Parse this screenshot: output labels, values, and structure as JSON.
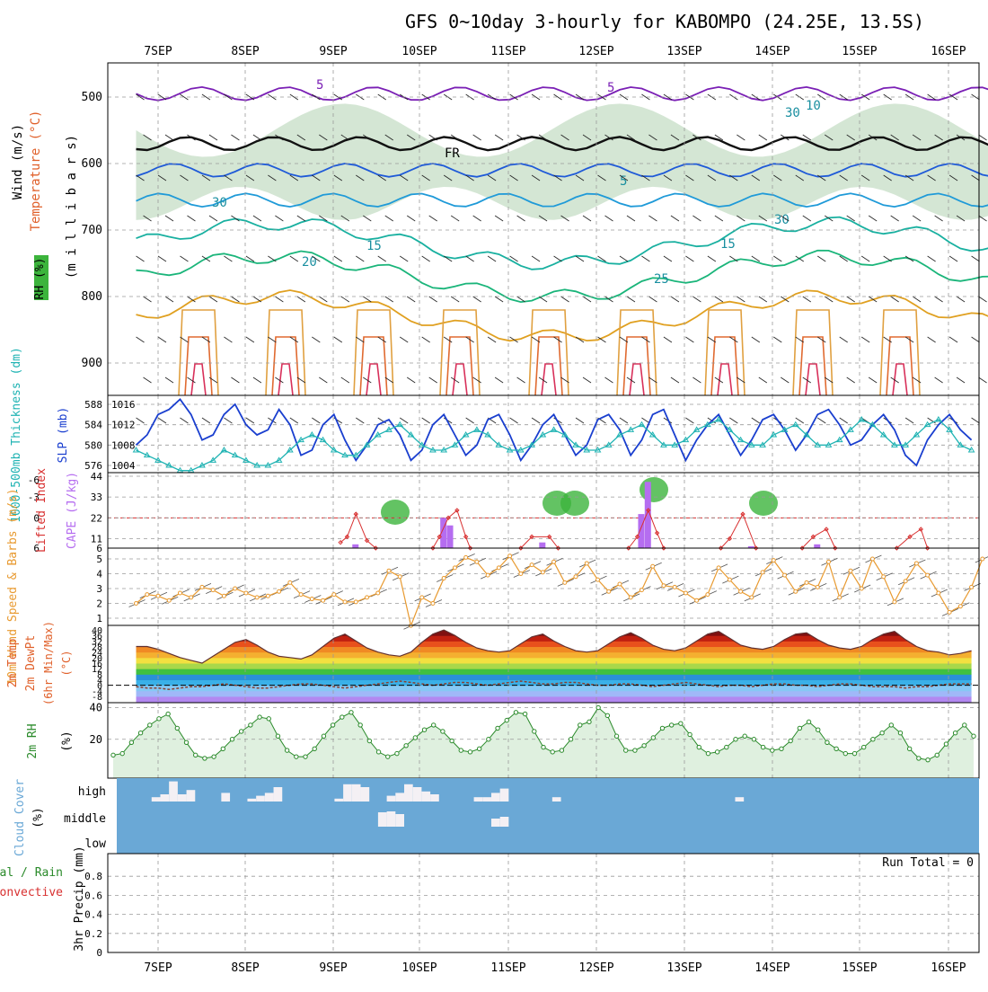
{
  "title": "GFS 0~10day 3-hourly for KABOMPO (24.25E, 13.5S)",
  "dates": [
    "7SEP",
    "8SEP",
    "9SEP",
    "10SEP",
    "11SEP",
    "12SEP",
    "13SEP",
    "14SEP",
    "15SEP",
    "16SEP"
  ],
  "run_total_text": "Run Total = 0",
  "colors": {
    "frame": "#000000",
    "grid": "#9a9a9a",
    "rh_fill": "#cfe3cf",
    "rh_dark": "#3cb43c",
    "wind_label": "#000000",
    "temp_label": "#e0602a",
    "slp_line": "#1a3fcf",
    "thickness_line": "#1fb3b3",
    "cape_bar": "#b56df0",
    "lifted_index": "#d83030",
    "wind_speed": "#e89a30",
    "rh_line": "#2a8a2a",
    "cloud_sky": "#6aa8d6",
    "cloud_white": "#f4f0f4"
  },
  "chart_data": [
    {
      "id": "upper_air",
      "type": "heatmap",
      "ylabel_parts": [
        "Wind",
        "(m/s)",
        "Temperature",
        "(°C)",
        "RH",
        "(%)",
        "(m i l l i b a r s)"
      ],
      "y_ticks": [
        500,
        600,
        700,
        800,
        900
      ],
      "ylim": [
        450,
        950
      ],
      "contour_labels": [
        "5",
        "5",
        "FR",
        "5",
        "15",
        "15",
        "20",
        "25",
        "30",
        "30",
        "30",
        "10"
      ]
    },
    {
      "id": "slp_thickness",
      "type": "line",
      "ylabel_left": "1000-500mb Thickness (dm)",
      "ylabel_right": "SLP (mb)",
      "left_ticks": [
        576,
        580,
        584,
        588
      ],
      "right_ticks": [
        1004,
        1008,
        1012,
        1016
      ],
      "series": [
        {
          "name": "SLP",
          "values": [
            1008,
            1010,
            1014,
            1015,
            1017,
            1014,
            1009,
            1010,
            1014,
            1016,
            1012,
            1010,
            1011,
            1015,
            1012,
            1006,
            1007,
            1012,
            1014,
            1009,
            1005,
            1008,
            1012,
            1013,
            1010,
            1005,
            1007,
            1012,
            1014,
            1010,
            1006,
            1008,
            1013,
            1014,
            1010,
            1005,
            1008,
            1012,
            1014,
            1010,
            1006,
            1008,
            1013,
            1014,
            1011,
            1006,
            1009,
            1014,
            1015,
            1010,
            1005,
            1009,
            1012,
            1014,
            1010,
            1006,
            1009,
            1013,
            1014,
            1011,
            1007,
            1010,
            1014,
            1015,
            1012,
            1008,
            1009,
            1012,
            1014,
            1011,
            1006,
            1004,
            1009,
            1012,
            1014,
            1011,
            1009
          ]
        },
        {
          "name": "Thickness",
          "values": [
            579,
            578,
            577,
            576,
            575,
            575,
            576,
            577,
            579,
            578,
            577,
            576,
            576,
            577,
            579,
            581,
            582,
            581,
            579,
            578,
            578,
            580,
            582,
            583,
            584,
            582,
            580,
            579,
            579,
            580,
            582,
            583,
            582,
            580,
            579,
            579,
            580,
            582,
            583,
            582,
            580,
            579,
            579,
            580,
            582,
            583,
            584,
            582,
            580,
            580,
            581,
            583,
            584,
            585,
            583,
            581,
            580,
            580,
            582,
            583,
            584,
            582,
            580,
            580,
            581,
            583,
            585,
            584,
            582,
            580,
            580,
            582,
            584,
            585,
            583,
            580,
            579
          ]
        }
      ]
    },
    {
      "id": "cape_li",
      "type": "bar",
      "ylabel_left": "Lifted Index",
      "ylabel_right": "CAPE (J/kg)",
      "left_ticks": [
        "6",
        "0",
        "-6"
      ],
      "right_ticks": [
        6,
        11,
        22,
        33,
        44
      ],
      "cape_ticks_left": [
        "6",
        "0",
        "-3",
        "-6"
      ],
      "bars": [
        {
          "x": 10.0,
          "v": 8
        },
        {
          "x": 14.0,
          "v": 22
        },
        {
          "x": 14.3,
          "v": 18
        },
        {
          "x": 18.5,
          "v": 9
        },
        {
          "x": 23.0,
          "v": 24
        },
        {
          "x": 23.3,
          "v": 41
        },
        {
          "x": 28.0,
          "v": 7
        },
        {
          "x": 31.0,
          "v": 8
        }
      ],
      "li_segments": [
        [
          [
            9.3,
            9
          ],
          [
            9.6,
            12
          ],
          [
            10.0,
            24
          ],
          [
            10.5,
            10
          ],
          [
            10.9,
            6
          ]
        ],
        [
          [
            13.5,
            6
          ],
          [
            13.8,
            12
          ],
          [
            14.2,
            22
          ],
          [
            14.6,
            26
          ],
          [
            15.0,
            12
          ],
          [
            15.2,
            6
          ]
        ],
        [
          [
            17.5,
            6
          ],
          [
            18.0,
            12
          ],
          [
            18.8,
            12
          ],
          [
            19.2,
            6
          ]
        ],
        [
          [
            22.4,
            6
          ],
          [
            22.8,
            12
          ],
          [
            23.3,
            26
          ],
          [
            23.7,
            14
          ],
          [
            24.0,
            6
          ]
        ],
        [
          [
            26.6,
            6
          ],
          [
            27.0,
            11
          ],
          [
            27.6,
            24
          ],
          [
            28.2,
            6
          ]
        ],
        [
          [
            30.3,
            6
          ],
          [
            30.8,
            12
          ],
          [
            31.4,
            16
          ],
          [
            31.8,
            6
          ]
        ],
        [
          [
            34.6,
            6
          ],
          [
            35.2,
            12
          ],
          [
            35.7,
            16
          ],
          [
            36.0,
            6
          ]
        ]
      ]
    },
    {
      "id": "wind10m",
      "type": "line",
      "ylabel": "10m Wind Speed & Barbs (m/s)",
      "y_ticks": [
        1,
        2,
        3,
        4,
        5
      ],
      "series": [
        {
          "name": "Speed",
          "values": [
            2.0,
            2.6,
            2.5,
            2.2,
            2.7,
            2.4,
            3.1,
            2.9,
            2.5,
            3.0,
            2.7,
            2.4,
            2.5,
            2.8,
            3.4,
            2.6,
            2.3,
            2.2,
            2.6,
            2.1,
            2.1,
            2.4,
            2.7,
            4.2,
            3.8,
            0.5,
            2.4,
            2.0,
            3.7,
            4.4,
            5.1,
            4.8,
            3.9,
            4.4,
            5.2,
            4.0,
            4.6,
            4.1,
            4.8,
            3.4,
            3.8,
            4.7,
            3.6,
            2.8,
            3.3,
            2.4,
            2.9,
            4.5,
            3.2,
            3.1,
            2.7,
            2.2,
            2.6,
            4.4,
            3.6,
            2.8,
            2.4,
            4.1,
            4.9,
            3.9,
            2.8,
            3.4,
            3.1,
            4.8,
            2.4,
            4.2,
            3.0,
            5.0,
            3.8,
            2.1,
            3.5,
            4.7,
            3.9,
            2.7,
            1.4,
            1.8,
            3.1,
            5.0
          ]
        }
      ]
    },
    {
      "id": "temp2m",
      "type": "area",
      "ylabel": "2m Temp 2m DewPt (6hr Min/Max) (°C)",
      "y_ticks": [
        -8,
        -4,
        0,
        4,
        8,
        12,
        16,
        20,
        24,
        28,
        32,
        36,
        40
      ],
      "series": [
        {
          "name": "Temp",
          "values": [
            28,
            28,
            26,
            23,
            20,
            18,
            16,
            21,
            26,
            31,
            33,
            29,
            24,
            21,
            20,
            19,
            22,
            28,
            34,
            37,
            32,
            27,
            24,
            22,
            21,
            24,
            31,
            37,
            40,
            36,
            31,
            27,
            25,
            24,
            25,
            30,
            35,
            37,
            32,
            28,
            25,
            24,
            25,
            30,
            35,
            38,
            34,
            29,
            26,
            25,
            27,
            32,
            37,
            39,
            34,
            29,
            27,
            26,
            28,
            33,
            37,
            38,
            33,
            29,
            27,
            26,
            28,
            33,
            37,
            39,
            33,
            28,
            25,
            24,
            22,
            23,
            25
          ]
        },
        {
          "name": "DewPt",
          "values": [
            -1,
            -2,
            -2,
            -3,
            -2,
            -1,
            -1,
            0,
            1,
            0,
            -1,
            -2,
            -2,
            -1,
            0,
            1,
            1,
            0,
            -1,
            -2,
            -1,
            0,
            1,
            2,
            3,
            2,
            1,
            0,
            1,
            2,
            2,
            1,
            0,
            1,
            2,
            3,
            2,
            1,
            1,
            2,
            2,
            1,
            0,
            0,
            1,
            1,
            0,
            -1,
            0,
            1,
            2,
            1,
            0,
            -1,
            0,
            0,
            -1,
            0,
            1,
            1,
            0,
            0,
            -1,
            0,
            1,
            1,
            0,
            -1,
            -1,
            -1,
            -2,
            -1,
            -1,
            0,
            1,
            1,
            1
          ]
        }
      ]
    },
    {
      "id": "rh2m",
      "type": "area",
      "ylabel": "2m RH (%)",
      "y_ticks": [
        20,
        40
      ],
      "series": [
        {
          "name": "RH",
          "values": [
            10,
            11,
            18,
            24,
            29,
            33,
            36,
            27,
            18,
            10,
            8,
            9,
            14,
            20,
            25,
            29,
            34,
            33,
            22,
            13,
            9,
            9,
            14,
            22,
            29,
            34,
            37,
            29,
            19,
            12,
            9,
            11,
            16,
            21,
            26,
            29,
            25,
            19,
            13,
            12,
            14,
            20,
            27,
            32,
            37,
            36,
            25,
            15,
            12,
            13,
            20,
            29,
            31,
            40,
            35,
            22,
            13,
            13,
            16,
            21,
            27,
            29,
            30,
            23,
            15,
            11,
            12,
            15,
            20,
            22,
            20,
            15,
            13,
            14,
            19,
            27,
            31,
            26,
            18,
            14,
            11,
            11,
            15,
            20,
            24,
            29,
            24,
            14,
            8,
            7,
            10,
            17,
            24,
            29,
            22
          ]
        }
      ]
    },
    {
      "id": "cloud",
      "type": "bar",
      "ylabel": "Cloud Cover (%)",
      "levels": [
        "high",
        "middle",
        "low"
      ],
      "high": [
        0,
        0,
        0,
        0,
        3,
        5,
        14,
        5,
        8,
        0,
        0,
        0,
        6,
        0,
        0,
        2,
        4,
        6,
        10,
        0,
        0,
        0,
        0,
        0,
        0,
        2,
        12,
        12,
        10,
        0,
        0,
        4,
        6,
        12,
        10,
        7,
        5,
        0,
        0,
        0,
        0,
        3,
        3,
        6,
        9,
        0,
        0,
        0,
        0,
        0,
        3,
        0,
        0,
        0,
        0,
        0,
        0,
        0,
        0,
        0,
        0,
        0,
        0,
        0,
        0,
        0,
        0,
        0,
        0,
        0,
        0,
        3,
        0,
        0,
        0,
        0,
        0,
        0,
        0,
        0,
        0,
        0,
        0,
        0,
        0,
        0,
        0,
        0,
        0,
        0,
        0,
        0,
        0,
        0,
        0,
        0,
        0,
        0,
        0
      ],
      "middle": [
        0,
        0,
        0,
        0,
        0,
        0,
        0,
        0,
        0,
        0,
        0,
        0,
        0,
        0,
        0,
        0,
        0,
        0,
        0,
        0,
        0,
        0,
        0,
        0,
        0,
        0,
        0,
        0,
        0,
        0,
        16,
        17,
        14,
        0,
        0,
        0,
        0,
        0,
        0,
        0,
        0,
        0,
        0,
        9,
        11,
        0,
        0,
        0,
        0,
        0,
        0,
        0,
        0,
        0,
        0,
        0,
        0,
        0,
        0,
        0,
        0,
        0,
        0,
        0,
        0,
        0,
        0,
        0,
        0,
        0,
        0,
        0,
        0,
        0,
        0,
        0,
        0,
        0,
        0,
        0,
        0,
        0,
        0,
        0,
        0,
        0,
        0,
        0,
        0,
        0,
        0,
        0,
        0,
        0,
        0,
        0,
        0,
        0,
        0
      ],
      "low": []
    },
    {
      "id": "precip",
      "type": "bar",
      "ylabel": "3hr Precip (mm)",
      "legend_left": "Total / Rain",
      "legend_left2": "Convective",
      "y_ticks": [
        0,
        0.2,
        0.4,
        0.6,
        0.8
      ],
      "ylim": [
        0,
        1.0
      ],
      "values": []
    }
  ]
}
